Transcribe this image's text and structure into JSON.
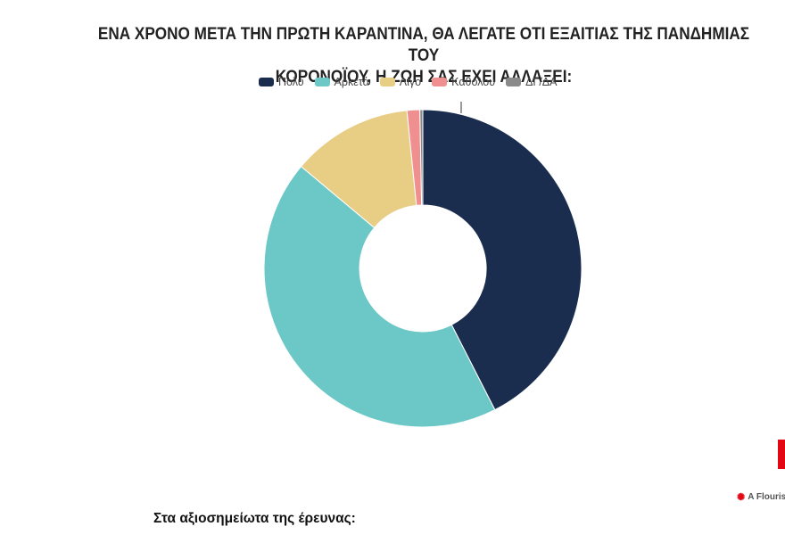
{
  "chart_data": {
    "type": "pie",
    "title_line1": "ΕΝΑ ΧΡΟΝΟ ΜΕΤΑ ΤΗΝ ΠΡΩΤΗ ΚΑΡΑΝΤΙΝΑ, ΘΑ ΛΕΓΑΤΕ ΟΤΙ ΕΞΑΙΤΙΑΣ ΤΗΣ ΠΑΝΔΗΜΙΑΣ ΤΟΥ",
    "title_line2": "ΚΟΡΟΝΟΪΟΥ, Η ΖΩΗ ΣΑΣ ΕΧΕΙ ΑΛΛΑΞΕΙ:",
    "categories": [
      "Πολύ",
      "Αρκετά",
      "Λίγο",
      "Καθόλου",
      "ΔΓ/ΔΑ"
    ],
    "values": [
      42.5,
      43.6,
      12.3,
      1.3,
      0.3
    ],
    "colors": [
      "#1b2d4f",
      "#6cc7c7",
      "#e8cd84",
      "#f08f8f",
      "#8a8a8a"
    ],
    "donut": true,
    "legend_position": "top"
  },
  "branding": {
    "flourish_text": "A Flouris",
    "accent_color": "#e30613"
  },
  "footer": {
    "text": "Στα αξιοσημείωτα της έρευνας:"
  }
}
